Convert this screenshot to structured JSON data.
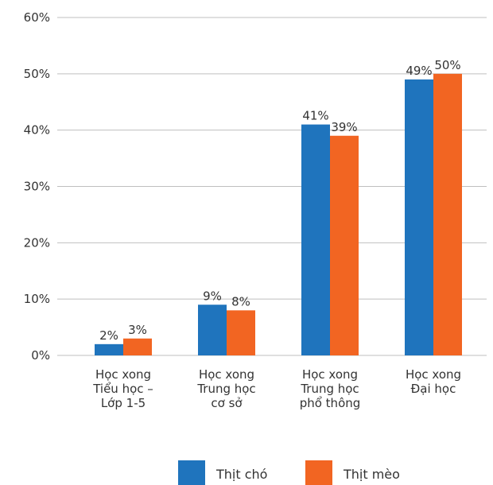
{
  "chart_data": {
    "type": "bar",
    "categories": [
      [
        "Học xong",
        "Tiểu học –",
        "Lớp 1-5"
      ],
      [
        "Học xong",
        "Trung học",
        "cơ sở"
      ],
      [
        "Học xong",
        "Trung học",
        "phổ thông"
      ],
      [
        "Học xong",
        "Đại học"
      ]
    ],
    "series": [
      {
        "name": "Thịt chó",
        "values": [
          2,
          9,
          41,
          49
        ],
        "labels": [
          "2%",
          "9%",
          "41%",
          "49%"
        ],
        "color": "#1f74bd"
      },
      {
        "name": "Thịt mèo",
        "values": [
          3,
          8,
          39,
          50
        ],
        "labels": [
          "3%",
          "8%",
          "39%",
          "50%"
        ],
        "color": "#f26522"
      }
    ],
    "ylim": [
      0,
      60
    ],
    "yticks": [
      0,
      10,
      20,
      30,
      40,
      50,
      60
    ],
    "ytick_labels": [
      "0%",
      "10%",
      "20%",
      "30%",
      "40%",
      "50%",
      "60%"
    ],
    "grid": true,
    "legend_position": "bottom"
  }
}
